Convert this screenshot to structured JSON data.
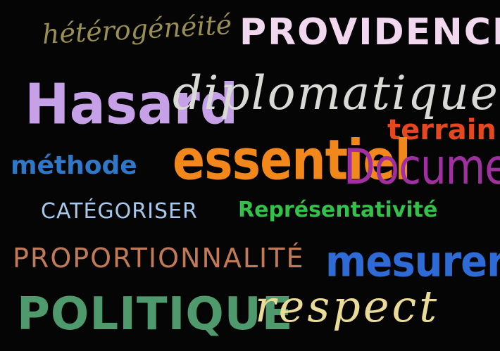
{
  "words": {
    "heterogeneite": {
      "text": "hétérogénéité",
      "color": "#9a8f52"
    },
    "providence": {
      "text": "PROVIDENCE",
      "color": "#f2d8ef"
    },
    "hasard": {
      "text": "Hasard",
      "color": "#c7a1e8"
    },
    "diplomatique": {
      "text": "diplomatique",
      "color": "#d9d9d6"
    },
    "terrain": {
      "text": "terrain",
      "color": "#e5471f"
    },
    "methode": {
      "text": "méthode",
      "color": "#2f78c8"
    },
    "essentiel": {
      "text": "essentiel",
      "color": "#f2871c"
    },
    "documenter": {
      "text": "Documenter",
      "color": "#a02fa0"
    },
    "categoriser": {
      "text": "CATÉGORISER",
      "color": "#a9c7ea"
    },
    "representativite": {
      "text": "Représentativité",
      "color": "#33c14a"
    },
    "proportionnalite": {
      "text": "PROPORTIONNALITÉ",
      "color": "#c07a57"
    },
    "mesurer": {
      "text": "mesurer",
      "color": "#2e6bd6"
    },
    "politique": {
      "text": "POLITIQUE",
      "color": "#4f9a6c"
    },
    "respect": {
      "text": "respect",
      "color": "#eadc97"
    }
  }
}
